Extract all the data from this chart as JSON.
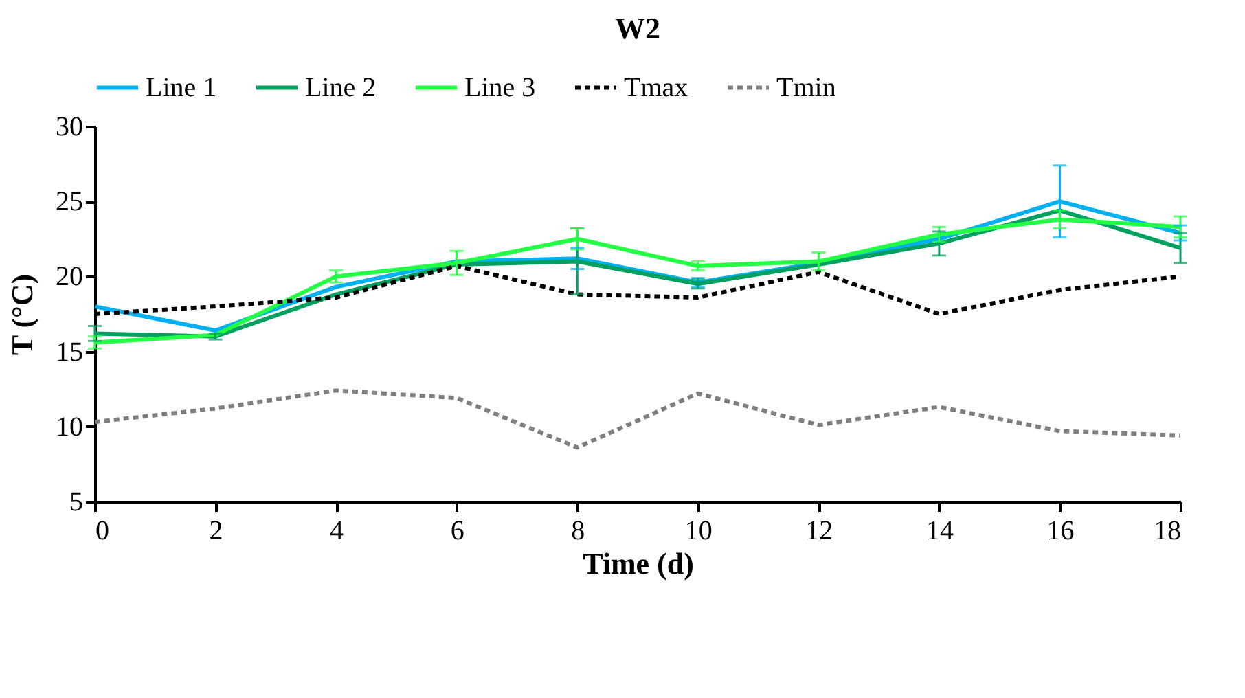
{
  "chart_data": {
    "type": "line",
    "title": "W2",
    "xlabel": "Time (d)",
    "ylabel": "T (°C)",
    "x": [
      0,
      2,
      4,
      6,
      8,
      10,
      12,
      14,
      16,
      18
    ],
    "series": [
      {
        "name": "Line 1",
        "color": "#00b0f0",
        "line_style": "solid",
        "values": [
          18.0,
          16.4,
          19.3,
          21.0,
          21.2,
          19.6,
          20.9,
          22.5,
          25.0,
          22.9
        ],
        "errors": [
          null,
          null,
          null,
          null,
          0.7,
          0.3,
          null,
          null,
          2.4,
          0.5
        ]
      },
      {
        "name": "Line 2",
        "color": "#00a060",
        "line_style": "solid",
        "values": [
          16.2,
          16.0,
          18.8,
          20.8,
          21.0,
          19.5,
          20.8,
          22.2,
          24.4,
          21.9
        ],
        "errors": [
          0.5,
          0.2,
          null,
          null,
          2.2,
          0.3,
          null,
          0.8,
          null,
          1.0
        ]
      },
      {
        "name": "Line 3",
        "color": "#22ff44",
        "line_style": "solid",
        "values": [
          15.6,
          16.1,
          20.0,
          20.9,
          22.5,
          20.7,
          21.0,
          22.8,
          23.8,
          23.3
        ],
        "errors": [
          0.4,
          null,
          0.4,
          0.8,
          0.7,
          0.3,
          0.6,
          0.5,
          0.6,
          0.7
        ]
      },
      {
        "name": "Tmax",
        "color": "#000000",
        "line_style": "dashed",
        "values": [
          17.5,
          18.0,
          18.6,
          20.7,
          18.8,
          18.6,
          20.3,
          17.5,
          19.1,
          20.0
        ]
      },
      {
        "name": "Tmin",
        "color": "#7f7f7f",
        "line_style": "dashed",
        "values": [
          10.3,
          11.2,
          12.4,
          11.9,
          8.6,
          12.2,
          10.1,
          11.3,
          9.7,
          9.4
        ]
      }
    ],
    "xlim": [
      0,
      18
    ],
    "xticks": [
      0,
      2,
      4,
      6,
      8,
      10,
      12,
      14,
      16,
      18
    ],
    "ylim": [
      5,
      30
    ],
    "yticks": [
      5,
      10,
      15,
      20,
      25,
      30
    ],
    "grid": false,
    "legend": "top",
    "marker": "none"
  }
}
